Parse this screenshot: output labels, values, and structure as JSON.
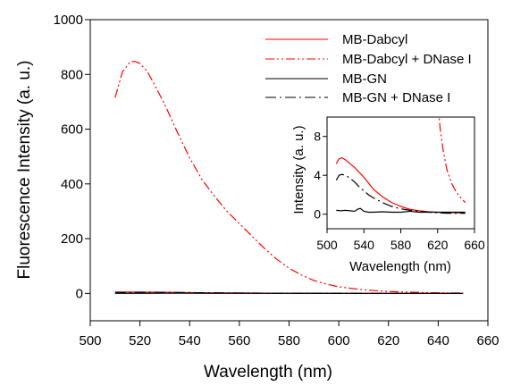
{
  "chart_data": [
    {
      "type": "line",
      "xlabel": "Wavelength (nm)",
      "ylabel": "Fluorescence Intensity (a. u.)",
      "xlim": [
        500,
        660
      ],
      "ylim": [
        -100,
        1000
      ],
      "x_ticks": [
        500,
        520,
        540,
        560,
        580,
        600,
        620,
        640,
        660
      ],
      "y_ticks": [
        0,
        200,
        400,
        600,
        800,
        1000
      ],
      "legend_position": "top-right",
      "series": [
        {
          "name": "MB-Dabcyl",
          "color": "#ff0000",
          "style": "solid",
          "x": [
            510,
            520,
            530,
            540,
            550,
            560,
            570,
            580,
            590,
            600,
            610,
            620,
            630,
            640,
            650
          ],
          "y": [
            5,
            5,
            4,
            3,
            2,
            1.5,
            1,
            0.5,
            0.3,
            0.2,
            0.1,
            0.1,
            0.1,
            0.1,
            0.1
          ]
        },
        {
          "name": "MB-Dabcyl + DNase I",
          "color": "#ff0000",
          "style": "dash-dot-dot",
          "x": [
            510,
            513,
            516,
            518,
            520,
            523,
            526,
            530,
            535,
            540,
            545,
            550,
            555,
            560,
            565,
            570,
            575,
            580,
            585,
            590,
            595,
            600,
            610,
            620,
            630,
            640,
            650
          ],
          "y": [
            715,
            810,
            845,
            848,
            840,
            810,
            760,
            690,
            590,
            495,
            415,
            355,
            300,
            255,
            210,
            165,
            125,
            92,
            67,
            47,
            34,
            24,
            13,
            7,
            4,
            2,
            1.2
          ]
        },
        {
          "name": "MB-GN",
          "color": "#000000",
          "style": "solid",
          "x": [
            510,
            520,
            530,
            540,
            550,
            560,
            570,
            580,
            590,
            600,
            610,
            620,
            630,
            640,
            650
          ],
          "y": [
            0.4,
            0.4,
            0.5,
            0.6,
            0.2,
            0.3,
            0.2,
            0.2,
            0.3,
            0.2,
            0.2,
            0.2,
            0.2,
            0.2,
            0.2
          ]
        },
        {
          "name": "MB-GN + DNase I",
          "color": "#000000",
          "style": "dash-dot",
          "x": [
            510,
            520,
            530,
            540,
            550,
            560,
            570,
            580,
            590,
            600,
            610,
            620,
            630,
            640,
            650
          ],
          "y": [
            3.5,
            4,
            3.6,
            2.8,
            2,
            1.4,
            0.9,
            0.6,
            0.4,
            0.3,
            0.2,
            0.2,
            0.1,
            0.1,
            0.1
          ]
        }
      ]
    },
    {
      "type": "line",
      "inset": true,
      "xlabel": "Wavelength (nm)",
      "ylabel": "Intensity (a. u.)",
      "xlim": [
        500,
        660
      ],
      "ylim": [
        -1.5,
        10
      ],
      "x_ticks": [
        500,
        540,
        580,
        620,
        660
      ],
      "x_tick_labels": [
        "500",
        "540",
        "580",
        "620",
        "660"
      ],
      "y_ticks": [
        0,
        4,
        8
      ],
      "y_tick_labels": [
        "0",
        "4",
        "8"
      ],
      "series": [
        {
          "color": "#ff0000",
          "style": "solid",
          "x": [
            510,
            513,
            516,
            520,
            525,
            530,
            535,
            540,
            545,
            550,
            555,
            560,
            570,
            580,
            590,
            600,
            610,
            620,
            630,
            640,
            650
          ],
          "y": [
            5.2,
            5.7,
            5.8,
            5.6,
            5.2,
            4.8,
            4.3,
            3.8,
            3.2,
            2.6,
            2.2,
            1.8,
            1.2,
            0.8,
            0.5,
            0.35,
            0.25,
            0.2,
            0.15,
            0.15,
            0.1
          ]
        },
        {
          "color": "#ff0000",
          "style": "dash-dot-dot",
          "x": [
            620,
            623,
            626,
            630,
            635,
            640,
            645,
            650
          ],
          "y": [
            11.5,
            8.6,
            6.6,
            4.6,
            3.2,
            2.3,
            1.7,
            1.2
          ]
        },
        {
          "color": "#000000",
          "style": "solid",
          "x": [
            510,
            515,
            520,
            525,
            530,
            533,
            536,
            540,
            545,
            550,
            560,
            570,
            580,
            590,
            600,
            610,
            620,
            630,
            640,
            650
          ],
          "y": [
            0.4,
            0.35,
            0.4,
            0.35,
            0.3,
            0.5,
            0.6,
            0.3,
            0.2,
            0.2,
            0.25,
            0.2,
            0.2,
            0.3,
            0.2,
            0.2,
            0.2,
            0.2,
            0.2,
            0.2
          ]
        },
        {
          "color": "#000000",
          "style": "dash-dot",
          "x": [
            510,
            513,
            516,
            520,
            525,
            530,
            535,
            540,
            545,
            550,
            560,
            570,
            580,
            590,
            600,
            610,
            620,
            630,
            640,
            650
          ],
          "y": [
            3.5,
            4.0,
            4.1,
            4.0,
            3.7,
            3.3,
            2.8,
            2.4,
            2.0,
            1.7,
            1.2,
            0.8,
            0.55,
            0.4,
            0.3,
            0.2,
            0.15,
            0.1,
            0.1,
            0.1
          ]
        }
      ]
    }
  ]
}
